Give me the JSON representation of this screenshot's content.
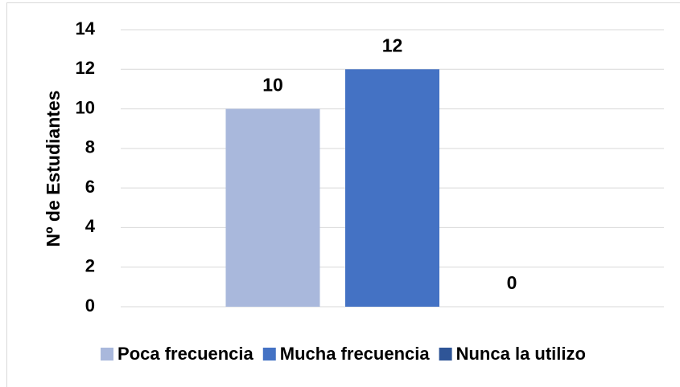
{
  "chart_data": {
    "type": "bar",
    "y_label": "Nº de Estudiantes",
    "categories": [
      null
    ],
    "series": [
      {
        "name": "Poca frecuencia",
        "color": "#a9b8dc",
        "values": [
          10
        ]
      },
      {
        "name": "Mucha frecuencia",
        "color": "#4472c4",
        "values": [
          12
        ]
      },
      {
        "name": "Nunca la utilizo",
        "color": "#2f5597",
        "values": [
          0
        ]
      }
    ],
    "ylim": [
      0,
      14
    ],
    "yticks": [
      0,
      2,
      4,
      6,
      8,
      10,
      12,
      14
    ],
    "grid": true,
    "legend": "bottom"
  }
}
